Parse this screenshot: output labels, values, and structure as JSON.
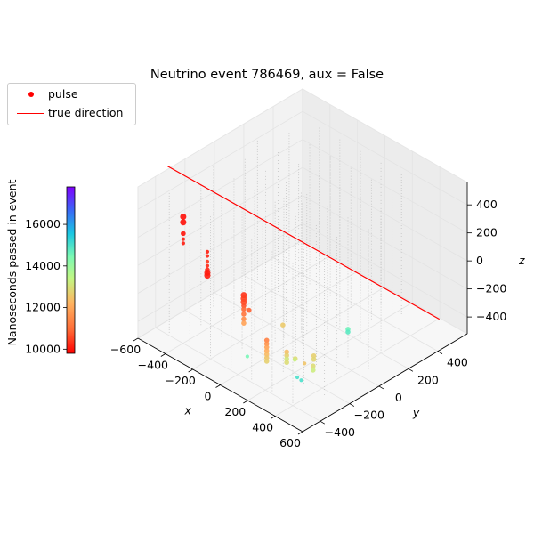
{
  "title": "Neutrino event 786469, aux = False",
  "legend": {
    "items": [
      {
        "label": "pulse",
        "marker": "dot",
        "color": "#ff0000"
      },
      {
        "label": "true direction",
        "marker": "line",
        "color": "#ff0000"
      }
    ]
  },
  "colorbar": {
    "label": "Nanoseconds passed in event",
    "cmap": "rainbow_r",
    "range": [
      9800,
      17800
    ],
    "ticks": [
      10000,
      12000,
      14000,
      16000
    ]
  },
  "chart_data": {
    "type": "scatter",
    "projection": "3d",
    "title": "Neutrino event 786469, aux = False",
    "xlabel": "x",
    "ylabel": "y",
    "zlabel": "z",
    "xlim": [
      -600,
      600
    ],
    "ylim": [
      -520,
      600
    ],
    "zlim": [
      -520,
      560
    ],
    "xticks": [
      -600,
      -400,
      -200,
      0,
      200,
      400,
      600
    ],
    "yticks": [
      -400,
      -200,
      0,
      200,
      400
    ],
    "zticks": [
      -400,
      -200,
      0,
      200,
      400
    ],
    "grid": true,
    "legend_position": "upper-left",
    "detector_strings": [
      [
        -500,
        -400
      ],
      [
        -350,
        -400
      ],
      [
        -200,
        -400
      ],
      [
        -50,
        -400
      ],
      [
        100,
        -400
      ],
      [
        250,
        -400
      ],
      [
        400,
        -400
      ],
      [
        -430,
        -250
      ],
      [
        -280,
        -250
      ],
      [
        -130,
        -250
      ],
      [
        20,
        -250
      ],
      [
        170,
        -250
      ],
      [
        320,
        -250
      ],
      [
        470,
        -250
      ],
      [
        -500,
        -100
      ],
      [
        -350,
        -100
      ],
      [
        -200,
        -100
      ],
      [
        -50,
        -100
      ],
      [
        100,
        -100
      ],
      [
        250,
        -100
      ],
      [
        400,
        -100
      ],
      [
        -430,
        50
      ],
      [
        -280,
        50
      ],
      [
        -130,
        50
      ],
      [
        20,
        50
      ],
      [
        170,
        50
      ],
      [
        320,
        50
      ],
      [
        470,
        50
      ],
      [
        -500,
        200
      ],
      [
        -350,
        200
      ],
      [
        -200,
        200
      ],
      [
        -50,
        200
      ],
      [
        100,
        200
      ],
      [
        250,
        200
      ],
      [
        400,
        200
      ],
      [
        -430,
        350
      ],
      [
        -280,
        350
      ],
      [
        -130,
        350
      ],
      [
        20,
        350
      ],
      [
        170,
        350
      ],
      [
        320,
        350
      ],
      [
        -350,
        480
      ],
      [
        -200,
        480
      ],
      [
        -50,
        480
      ],
      [
        100,
        480
      ],
      [
        250,
        480
      ],
      [
        -40,
        -50
      ],
      [
        60,
        -20
      ],
      [
        -10,
        40
      ]
    ],
    "string_z_range": [
      -500,
      500
    ],
    "pulses": [
      {
        "x": -420,
        "y": -380,
        "z": 360,
        "t": 9950,
        "s": 5
      },
      {
        "x": -420,
        "y": -380,
        "z": 320,
        "t": 9950,
        "s": 5
      },
      {
        "x": -420,
        "y": -380,
        "z": 240,
        "t": 10000,
        "s": 4
      },
      {
        "x": -420,
        "y": -380,
        "z": 200,
        "t": 10050,
        "s": 3
      },
      {
        "x": -420,
        "y": -380,
        "z": 170,
        "t": 10050,
        "s": 3
      },
      {
        "x": -330,
        "y": -300,
        "z": 110,
        "t": 10100,
        "s": 3
      },
      {
        "x": -330,
        "y": -300,
        "z": 80,
        "t": 10150,
        "s": 3
      },
      {
        "x": -330,
        "y": -300,
        "z": 40,
        "t": 10350,
        "s": 3
      },
      {
        "x": -330,
        "y": -300,
        "z": 10,
        "t": 10200,
        "s": 3
      },
      {
        "x": -330,
        "y": -300,
        "z": -20,
        "t": 10150,
        "s": 4
      },
      {
        "x": -330,
        "y": -300,
        "z": -40,
        "t": 10100,
        "s": 5
      },
      {
        "x": -330,
        "y": -300,
        "z": -60,
        "t": 10100,
        "s": 5
      },
      {
        "x": -150,
        "y": -220,
        "z": -150,
        "t": 10350,
        "s": 5
      },
      {
        "x": -150,
        "y": -220,
        "z": -175,
        "t": 10450,
        "s": 5
      },
      {
        "x": -150,
        "y": -220,
        "z": -200,
        "t": 10550,
        "s": 5
      },
      {
        "x": -150,
        "y": -220,
        "z": -225,
        "t": 10650,
        "s": 4
      },
      {
        "x": -150,
        "y": -220,
        "z": -250,
        "t": 10900,
        "s": 4
      },
      {
        "x": -150,
        "y": -220,
        "z": -285,
        "t": 11100,
        "s": 4
      },
      {
        "x": -150,
        "y": -220,
        "z": -320,
        "t": 11500,
        "s": 4
      },
      {
        "x": -150,
        "y": -220,
        "z": -350,
        "t": 11900,
        "s": 4
      },
      {
        "x": -80,
        "y": -250,
        "z": -200,
        "t": 10800,
        "s": 4
      },
      {
        "x": 60,
        "y": -260,
        "z": -330,
        "t": 11300,
        "s": 4
      },
      {
        "x": 60,
        "y": -260,
        "z": -355,
        "t": 11600,
        "s": 4
      },
      {
        "x": 60,
        "y": -260,
        "z": -380,
        "t": 11900,
        "s": 4
      },
      {
        "x": 60,
        "y": -260,
        "z": -405,
        "t": 12100,
        "s": 4
      },
      {
        "x": 60,
        "y": -260,
        "z": -430,
        "t": 12300,
        "s": 4
      },
      {
        "x": 60,
        "y": -260,
        "z": -455,
        "t": 12500,
        "s": 4
      },
      {
        "x": 60,
        "y": -260,
        "z": -480,
        "t": 12700,
        "s": 4
      },
      {
        "x": 120,
        "y": -180,
        "z": -430,
        "t": 12400,
        "s": 4
      },
      {
        "x": 120,
        "y": -180,
        "z": -455,
        "t": 12700,
        "s": 4
      },
      {
        "x": 120,
        "y": -180,
        "z": -480,
        "t": 13100,
        "s": 4
      },
      {
        "x": 120,
        "y": -180,
        "z": -505,
        "t": 12900,
        "s": 4
      },
      {
        "x": 150,
        "y": -150,
        "z": -480,
        "t": 12900,
        "s": 4
      },
      {
        "x": 200,
        "y": -200,
        "z": -430,
        "t": 13300,
        "s": 3
      },
      {
        "x": 210,
        "y": -80,
        "z": -470,
        "t": 12700,
        "s": 4
      },
      {
        "x": 210,
        "y": -80,
        "z": -495,
        "t": 12800,
        "s": 4
      },
      {
        "x": 280,
        "y": -150,
        "z": -460,
        "t": 12900,
        "s": 4
      },
      {
        "x": 280,
        "y": -150,
        "z": -490,
        "t": 13200,
        "s": 4
      },
      {
        "x": 250,
        "y": -180,
        "z": -440,
        "t": 12500,
        "s": 3
      },
      {
        "x": 60,
        "y": -150,
        "z": -290,
        "t": 12600,
        "s": 4
      },
      {
        "x": -60,
        "y": -280,
        "z": -500,
        "t": 14500,
        "s": 3
      },
      {
        "x": 290,
        "y": -240,
        "z": -500,
        "t": 15000,
        "s": 3
      },
      {
        "x": 320,
        "y": 50,
        "z": -300,
        "t": 14600,
        "s": 4
      },
      {
        "x": 320,
        "y": 50,
        "z": -320,
        "t": 14800,
        "s": 4
      },
      {
        "x": 240,
        "y": -220,
        "z": -520,
        "t": 15000,
        "s": 3
      }
    ],
    "true_direction": {
      "start": [
        -620,
        -300,
        560
      ],
      "end": [
        440,
        560,
        -480
      ]
    }
  }
}
